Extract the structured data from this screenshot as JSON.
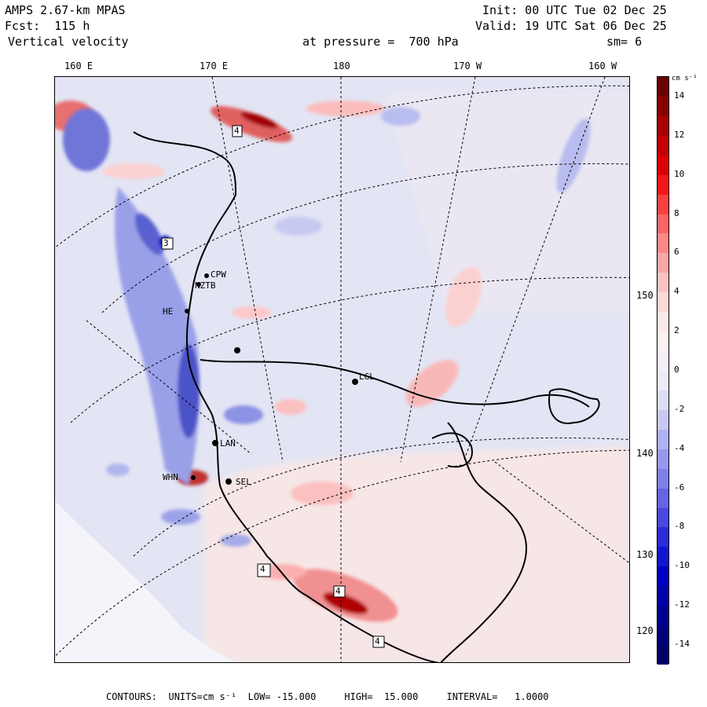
{
  "header": {
    "model": "AMPS 2.67-km MPAS",
    "fcst": "Fcst:  115 h",
    "field": "Vertical velocity",
    "init": "Init: 00 UTC Tue 02 Dec 25",
    "valid": "Valid: 19 UTC Sat 06 Dec 25",
    "level": "at pressure =  700 hPa",
    "smooth": "sm= 6"
  },
  "lon_labels": [
    "160 E",
    "170 E",
    "180",
    "170 W",
    "160 W"
  ],
  "lat_labels": [
    "150 W",
    "140 W",
    "130 W",
    "120 W"
  ],
  "stations": [
    "CPW",
    "NZTB",
    "HE",
    "LGL",
    "LAN",
    "WHN",
    "SEL"
  ],
  "box_labels": [
    "4",
    "3",
    "4",
    "4",
    "4"
  ],
  "colorbar": {
    "units": "cm s⁻¹",
    "tick_values": [
      "14",
      "12",
      "10",
      "8",
      "6",
      "4",
      "2",
      "0",
      "-2",
      "-4",
      "-6",
      "-8",
      "-10",
      "-12",
      "-14"
    ],
    "min": -15,
    "max": 15,
    "colors_top_to_bottom": [
      "#6b0000",
      "#8a0000",
      "#a80000",
      "#c40000",
      "#dc0000",
      "#f21818",
      "#f94040",
      "#fb6464",
      "#fc8888",
      "#fca6a6",
      "#fcc2c2",
      "#fcd8d8",
      "#fce8e8",
      "#fbf2f2",
      "#f5f0f5",
      "#ececf6",
      "#dcdcf6",
      "#c8c8f4",
      "#b0b0f2",
      "#9898ee",
      "#8080ea",
      "#6464e4",
      "#4848de",
      "#2c2cd8",
      "#1414d0",
      "#0000c0",
      "#0000a8",
      "#000090",
      "#00007a",
      "#000066"
    ]
  },
  "footer": {
    "text": "CONTOURS:  UNITS=cm s⁻¹  LOW= -15.000     HIGH=  15.000     INTERVAL=   1.0000"
  }
}
